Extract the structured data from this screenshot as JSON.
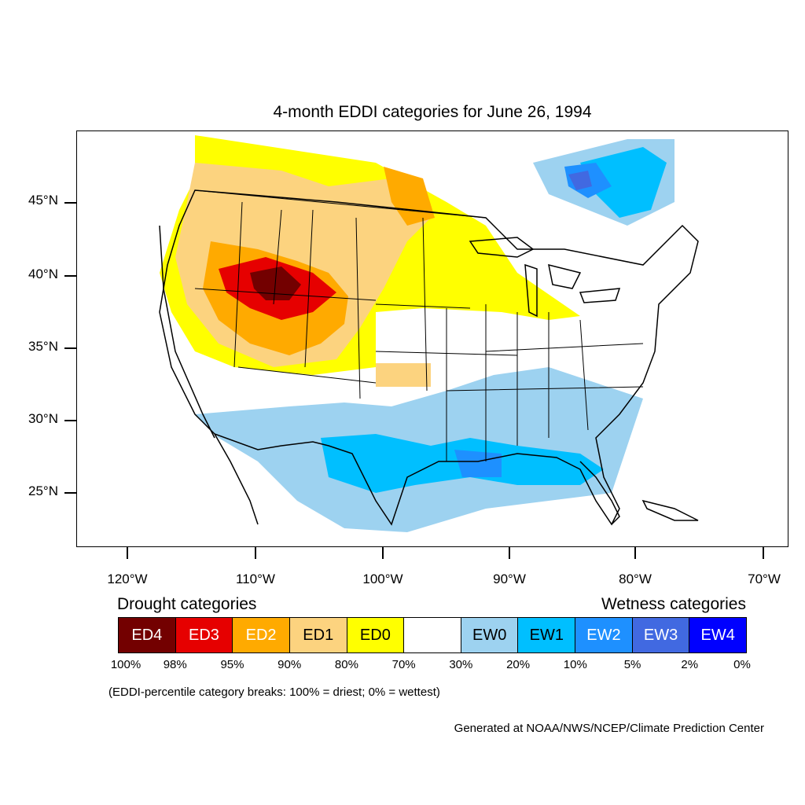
{
  "title": "4-month EDDI categories for June 26, 1994",
  "lat_labels": [
    "45°N",
    "40°N",
    "35°N",
    "30°N",
    "25°N"
  ],
  "lon_labels": [
    "120°W",
    "110°W",
    "100°W",
    "90°W",
    "80°W",
    "70°W"
  ],
  "legend": {
    "drought_heading": "Drought categories",
    "wetness_heading": "Wetness categories",
    "categories": [
      {
        "label": "ED4",
        "color": "#730000",
        "text_color": "#ffffff"
      },
      {
        "label": "ED3",
        "color": "#e60000",
        "text_color": "#ffffff"
      },
      {
        "label": "ED2",
        "color": "#ffaa00",
        "text_color": "#ffffff"
      },
      {
        "label": "ED1",
        "color": "#fcd37f",
        "text_color": "#000000"
      },
      {
        "label": "ED0",
        "color": "#ffff00",
        "text_color": "#000000"
      },
      {
        "label": "",
        "color": "#ffffff",
        "text_color": "#000000"
      },
      {
        "label": "EW0",
        "color": "#9dd2f0",
        "text_color": "#000000"
      },
      {
        "label": "EW1",
        "color": "#00bfff",
        "text_color": "#000000"
      },
      {
        "label": "EW2",
        "color": "#1e90ff",
        "text_color": "#ffffff"
      },
      {
        "label": "EW3",
        "color": "#4169e1",
        "text_color": "#ffffff"
      },
      {
        "label": "EW4",
        "color": "#0000ff",
        "text_color": "#ffffff"
      }
    ],
    "breaks": [
      "100%",
      "98%",
      "95%",
      "90%",
      "80%",
      "70%",
      "30%",
      "20%",
      "10%",
      "5%",
      "2%",
      "0%"
    ],
    "note": "(EDDI-percentile category breaks: 100% = driest; 0% = wettest)"
  },
  "credit": "Generated at NOAA/NWS/NCEP/Climate Prediction Center"
}
